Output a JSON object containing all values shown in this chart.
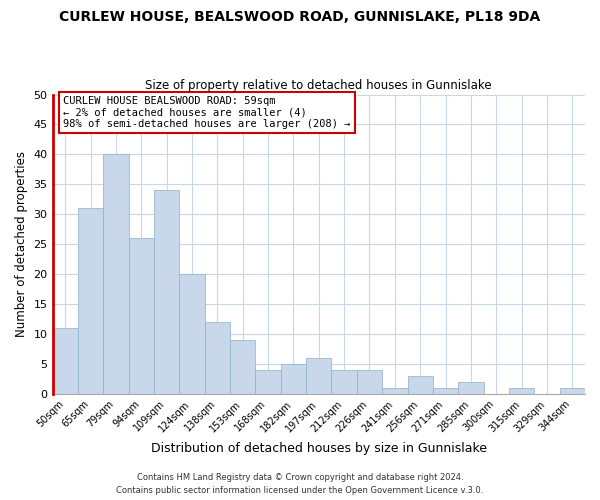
{
  "title": "CURLEW HOUSE, BEALSWOOD ROAD, GUNNISLAKE, PL18 9DA",
  "subtitle": "Size of property relative to detached houses in Gunnislake",
  "xlabel": "Distribution of detached houses by size in Gunnislake",
  "ylabel": "Number of detached properties",
  "bar_labels": [
    "50sqm",
    "65sqm",
    "79sqm",
    "94sqm",
    "109sqm",
    "124sqm",
    "138sqm",
    "153sqm",
    "168sqm",
    "182sqm",
    "197sqm",
    "212sqm",
    "226sqm",
    "241sqm",
    "256sqm",
    "271sqm",
    "285sqm",
    "300sqm",
    "315sqm",
    "329sqm",
    "344sqm"
  ],
  "bar_values": [
    11,
    31,
    40,
    26,
    34,
    20,
    12,
    9,
    4,
    5,
    6,
    4,
    4,
    1,
    3,
    1,
    2,
    0,
    1,
    0,
    1
  ],
  "bar_color": "#c8d8ea",
  "bar_edge_color": "#8ab0cc",
  "highlight_color": "#cc0000",
  "ylim": [
    0,
    50
  ],
  "yticks": [
    0,
    5,
    10,
    15,
    20,
    25,
    30,
    35,
    40,
    45,
    50
  ],
  "annotation_title": "CURLEW HOUSE BEALSWOOD ROAD: 59sqm",
  "annotation_line1": "← 2% of detached houses are smaller (4)",
  "annotation_line2": "98% of semi-detached houses are larger (208) →",
  "footer_line1": "Contains HM Land Registry data © Crown copyright and database right 2024.",
  "footer_line2": "Contains public sector information licensed under the Open Government Licence v.3.0.",
  "bg_color": "#ffffff",
  "grid_color": "#c8d8ea"
}
